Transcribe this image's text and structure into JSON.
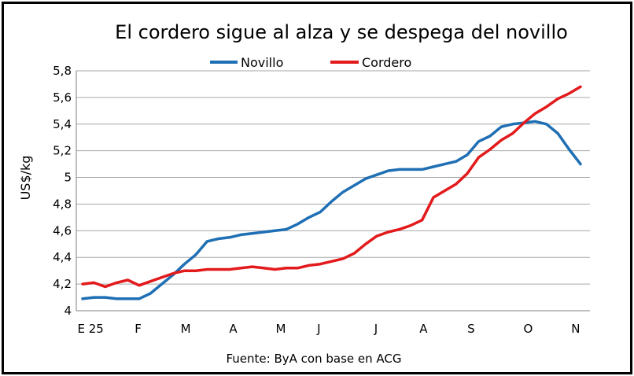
{
  "chart_data": {
    "type": "line",
    "title": "El cordero sigue al alza y se despega del novillo",
    "ylabel": "US$/kg",
    "xlabel": "",
    "source": "Fuente: ByA con base en ACG",
    "ylim": [
      4,
      5.8
    ],
    "yticks": [
      "4",
      "4,2",
      "4,4",
      "4,6",
      "4,8",
      "5",
      "5,2",
      "5,4",
      "5,6",
      "5,8"
    ],
    "ytick_values": [
      4,
      4.2,
      4.4,
      4.6,
      4.8,
      5,
      5.2,
      5.4,
      5.6,
      5.8
    ],
    "x_tick_labels": [
      {
        "label": "E 25",
        "index": 1
      },
      {
        "label": "F",
        "index": 6
      },
      {
        "label": "M",
        "index": 11
      },
      {
        "label": "A",
        "index": 16
      },
      {
        "label": "M",
        "index": 21
      },
      {
        "label": "J",
        "index": 25
      },
      {
        "label": "J",
        "index": 31
      },
      {
        "label": "A",
        "index": 36
      },
      {
        "label": "S",
        "index": 41
      },
      {
        "label": "O",
        "index": 47
      },
      {
        "label": "N",
        "index": 52
      }
    ],
    "x_count": 54,
    "grid": true,
    "legend_position": "top-center",
    "series": [
      {
        "name": "Novillo",
        "color": "#1f6fb4",
        "values": [
          4.09,
          4.1,
          4.1,
          4.09,
          4.09,
          4.09,
          4.13,
          4.2,
          4.27,
          4.35,
          4.42,
          4.52,
          4.54,
          4.55,
          4.57,
          4.58,
          4.59,
          4.6,
          4.61,
          4.65,
          4.7,
          4.74,
          4.82,
          4.89,
          4.94,
          4.99,
          5.02,
          5.05,
          5.06,
          5.06,
          5.06,
          5.08,
          5.1,
          5.12,
          5.17,
          5.27,
          5.31,
          5.38,
          5.4,
          5.41,
          5.42,
          5.4,
          5.33,
          5.21,
          5.1
        ]
      },
      {
        "name": "Cordero",
        "color": "#e31a1c",
        "values": [
          4.2,
          4.21,
          4.18,
          4.21,
          4.23,
          4.19,
          4.22,
          4.25,
          4.28,
          4.3,
          4.3,
          4.31,
          4.31,
          4.31,
          4.32,
          4.33,
          4.32,
          4.31,
          4.32,
          4.32,
          4.34,
          4.35,
          4.37,
          4.39,
          4.43,
          4.5,
          4.56,
          4.59,
          4.61,
          4.64,
          4.68,
          4.85,
          4.9,
          4.95,
          5.03,
          5.15,
          5.21,
          5.28,
          5.33,
          5.41,
          5.48,
          5.53,
          5.59,
          5.63,
          5.68
        ]
      }
    ]
  }
}
